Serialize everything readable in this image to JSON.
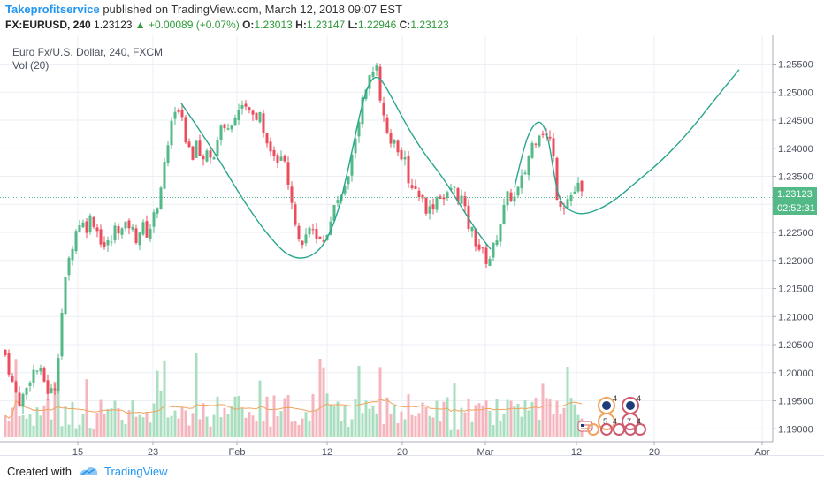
{
  "header": {
    "author": "Takeprofitservice",
    "published": " published on TradingView.com, March 12, 2018 09:07 EST",
    "symbol": "FX:EURUSD, 240",
    "last": "1.23123",
    "change": "▲ +0.00089 (+0.07%)",
    "o_label": "O:",
    "o_value": "1.23013",
    "h_label": "H:",
    "h_value": "1.23147",
    "l_label": "L:",
    "l_value": "1.22946",
    "c_label": "C:",
    "c_value": "1.23123"
  },
  "chart": {
    "legend_title": "Euro Fx/U.S. Dollar, 240, FXCM",
    "legend_vol": "Vol (20)",
    "price_badge": "1.23123",
    "time_badge": "02:52:31"
  },
  "chart_data": {
    "type": "candlestick",
    "symbol": "EURUSD",
    "timeframe": "240",
    "y_ticks": [
      "1.25500",
      "1.25000",
      "1.24500",
      "1.24000",
      "1.23500",
      "1.23000",
      "1.22500",
      "1.22000",
      "1.21500",
      "1.21000",
      "1.20500",
      "1.20000",
      "1.19500",
      "1.19000"
    ],
    "y_tick_values": [
      1.255,
      1.25,
      1.245,
      1.24,
      1.235,
      1.23,
      1.225,
      1.22,
      1.215,
      1.21,
      1.205,
      1.2,
      1.195,
      1.19
    ],
    "ylim": [
      1.1875,
      1.2575
    ],
    "x_ticks": [
      "15",
      "23",
      "Feb",
      "12",
      "20",
      "Mar",
      "12",
      "20",
      "Apr"
    ],
    "last_price": 1.23123,
    "path_points": [
      [
        0,
        1.204
      ],
      [
        7,
        1.203
      ],
      [
        14,
        1.198
      ],
      [
        21,
        1.195
      ],
      [
        28,
        1.196
      ],
      [
        35,
        1.2
      ],
      [
        42,
        1.2005
      ],
      [
        49,
        1.199
      ],
      [
        56,
        1.196
      ],
      [
        63,
        1.198
      ],
      [
        68,
        1.208
      ],
      [
        73,
        1.215
      ],
      [
        78,
        1.22
      ],
      [
        83,
        1.224
      ],
      [
        90,
        1.227
      ],
      [
        97,
        1.226
      ],
      [
        104,
        1.228
      ],
      [
        111,
        1.225
      ],
      [
        118,
        1.2225
      ],
      [
        125,
        1.223
      ],
      [
        132,
        1.2265
      ],
      [
        139,
        1.225
      ],
      [
        146,
        1.2265
      ],
      [
        153,
        1.224
      ],
      [
        160,
        1.226
      ],
      [
        167,
        1.225
      ],
      [
        174,
        1.2275
      ],
      [
        180,
        1.232
      ],
      [
        185,
        1.236
      ],
      [
        190,
        1.241
      ],
      [
        195,
        1.245
      ],
      [
        200,
        1.248
      ],
      [
        205,
        1.247
      ],
      [
        210,
        1.242
      ],
      [
        216,
        1.239
      ],
      [
        222,
        1.24
      ],
      [
        228,
        1.237
      ],
      [
        234,
        1.239
      ],
      [
        240,
        1.238
      ],
      [
        246,
        1.242
      ],
      [
        252,
        1.244
      ],
      [
        258,
        1.243
      ],
      [
        264,
        1.245
      ],
      [
        270,
        1.246
      ],
      [
        276,
        1.249
      ],
      [
        282,
        1.247
      ],
      [
        288,
        1.245
      ],
      [
        294,
        1.246
      ],
      [
        300,
        1.243
      ],
      [
        306,
        1.24
      ],
      [
        312,
        1.238
      ],
      [
        318,
        1.239
      ],
      [
        324,
        1.235
      ],
      [
        330,
        1.23
      ],
      [
        336,
        1.225
      ],
      [
        342,
        1.224
      ],
      [
        348,
        1.2245
      ],
      [
        354,
        1.225
      ],
      [
        360,
        1.223
      ],
      [
        366,
        1.224
      ],
      [
        372,
        1.226
      ],
      [
        378,
        1.229
      ],
      [
        384,
        1.232
      ],
      [
        390,
        1.234
      ],
      [
        396,
        1.237
      ],
      [
        402,
        1.242
      ],
      [
        408,
        1.247
      ],
      [
        414,
        1.251
      ],
      [
        420,
        1.253
      ],
      [
        426,
        1.254
      ],
      [
        432,
        1.246
      ],
      [
        438,
        1.242
      ],
      [
        444,
        1.241
      ],
      [
        450,
        1.24
      ],
      [
        456,
        1.238
      ],
      [
        462,
        1.235
      ],
      [
        468,
        1.233
      ],
      [
        474,
        1.232
      ],
      [
        480,
        1.23
      ],
      [
        486,
        1.229
      ],
      [
        492,
        1.231
      ],
      [
        498,
        1.232
      ],
      [
        504,
        1.2305
      ],
      [
        510,
        1.233
      ],
      [
        516,
        1.232
      ],
      [
        522,
        1.231
      ],
      [
        528,
        1.227
      ],
      [
        534,
        1.225
      ],
      [
        540,
        1.223
      ],
      [
        546,
        1.221
      ],
      [
        552,
        1.22
      ],
      [
        558,
        1.222
      ],
      [
        564,
        1.226
      ],
      [
        570,
        1.229
      ],
      [
        576,
        1.232
      ],
      [
        582,
        1.231
      ],
      [
        588,
        1.233
      ],
      [
        594,
        1.236
      ],
      [
        600,
        1.24
      ],
      [
        606,
        1.242
      ],
      [
        612,
        1.244
      ],
      [
        618,
        1.242
      ],
      [
        624,
        1.241
      ],
      [
        630,
        1.232
      ],
      [
        636,
        1.23
      ],
      [
        642,
        1.231
      ],
      [
        648,
        1.232
      ],
      [
        654,
        1.233
      ],
      [
        659,
        1.2312
      ]
    ],
    "projection_curves": [
      {
        "points": [
          [
            205,
            1.248
          ],
          [
            240,
            1.24
          ],
          [
            270,
            1.232
          ],
          [
            300,
            1.225
          ],
          [
            330,
            1.22
          ],
          [
            360,
            1.221
          ],
          [
            380,
            1.227
          ],
          [
            395,
            1.237
          ],
          [
            408,
            1.247
          ],
          [
            418,
            1.252
          ],
          [
            428,
            1.253
          ],
          [
            440,
            1.25
          ],
          [
            460,
            1.244
          ],
          [
            480,
            1.239
          ],
          [
            500,
            1.235
          ],
          [
            520,
            1.23
          ],
          [
            540,
            1.225
          ],
          [
            555,
            1.222
          ]
        ]
      },
      {
        "points": [
          [
            582,
            1.233
          ],
          [
            592,
            1.24
          ],
          [
            602,
            1.244
          ],
          [
            612,
            1.245
          ],
          [
            620,
            1.242
          ],
          [
            626,
            1.236
          ],
          [
            632,
            1.231
          ],
          [
            642,
            1.229
          ],
          [
            660,
            1.228
          ],
          [
            690,
            1.23
          ],
          [
            720,
            1.234
          ],
          [
            750,
            1.238
          ],
          [
            780,
            1.243
          ],
          [
            810,
            1.249
          ],
          [
            836,
            1.254
          ]
        ]
      }
    ],
    "volume_ma_label": "Vol (20)"
  },
  "colors": {
    "up": "#26a69a",
    "up_candle": "#53b987",
    "down": "#eb4d5c",
    "grid": "#eceff4",
    "curve": "#2aa58d",
    "vol_up": "#a9dfbf",
    "vol_down": "#f4b6bd",
    "vol_ma": "#f0a45e",
    "price_label": "#53b987",
    "accent": "#2196f3"
  },
  "footer": {
    "created_with": "Created with",
    "brand": "TradingView"
  },
  "events": {
    "badge_a": "4",
    "badge_b": "4",
    "badge_c": "5",
    "badge_d": "4",
    "badge_e": "7",
    "badge_f": "4"
  }
}
